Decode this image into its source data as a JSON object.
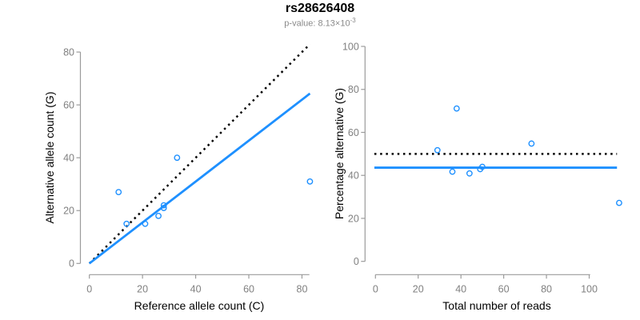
{
  "header": {
    "title": "rs28626408",
    "pvalue_prefix": "p-value: 8.13×10",
    "pvalue_exponent": "-3"
  },
  "colors": {
    "accent": "#1E90FF",
    "line_dotted": "#000000",
    "axis_line": "#9b9b9b",
    "tick_text": "#808080",
    "subtitle_text": "#8a8a8a",
    "title_text": "#000000"
  },
  "chart_data": [
    {
      "type": "scatter",
      "panel": "left",
      "xlabel": "Reference allele count (C)",
      "ylabel": "Alternative allele count (G)",
      "xlim": [
        0,
        83
      ],
      "ylim": [
        0,
        83
      ],
      "xticks": [
        0,
        20,
        40,
        60,
        80
      ],
      "yticks": [
        0,
        20,
        40,
        60,
        80
      ],
      "grid": false,
      "points": [
        [
          11,
          27
        ],
        [
          14,
          15
        ],
        [
          21,
          15
        ],
        [
          26,
          18
        ],
        [
          28,
          21
        ],
        [
          28,
          22
        ],
        [
          33,
          40
        ],
        [
          83,
          31
        ]
      ],
      "lines": [
        {
          "name": "identity-line",
          "style": "dotted",
          "color": "#000000",
          "x1": 0,
          "y1": 0,
          "x2": 83,
          "y2": 83
        },
        {
          "name": "fit-line",
          "style": "solid",
          "color": "#1E90FF",
          "x1": 0,
          "y1": 0,
          "x2": 83,
          "y2": 64.3
        }
      ]
    },
    {
      "type": "scatter",
      "panel": "right",
      "xlabel": "Total number of reads",
      "ylabel": "Percentage alternative (G)",
      "xlim": [
        0,
        115
      ],
      "ylim": [
        0,
        100
      ],
      "xticks": [
        0,
        20,
        40,
        60,
        80,
        100
      ],
      "yticks": [
        0,
        20,
        40,
        60,
        80,
        100
      ],
      "grid": false,
      "points": [
        [
          29,
          51.7
        ],
        [
          36,
          41.7
        ],
        [
          38,
          71.1
        ],
        [
          44,
          40.9
        ],
        [
          49,
          42.9
        ],
        [
          50,
          44
        ],
        [
          73,
          54.8
        ],
        [
          114,
          27.2
        ]
      ],
      "lines": [
        {
          "name": "expected-50pct-line",
          "style": "dotted",
          "color": "#000000",
          "x1": -0.5,
          "y1": 50,
          "x2": 113,
          "y2": 50
        },
        {
          "name": "mean-pct-line",
          "style": "solid",
          "color": "#1E90FF",
          "x1": -0.5,
          "y1": 43.6,
          "x2": 113,
          "y2": 43.6
        }
      ]
    }
  ]
}
